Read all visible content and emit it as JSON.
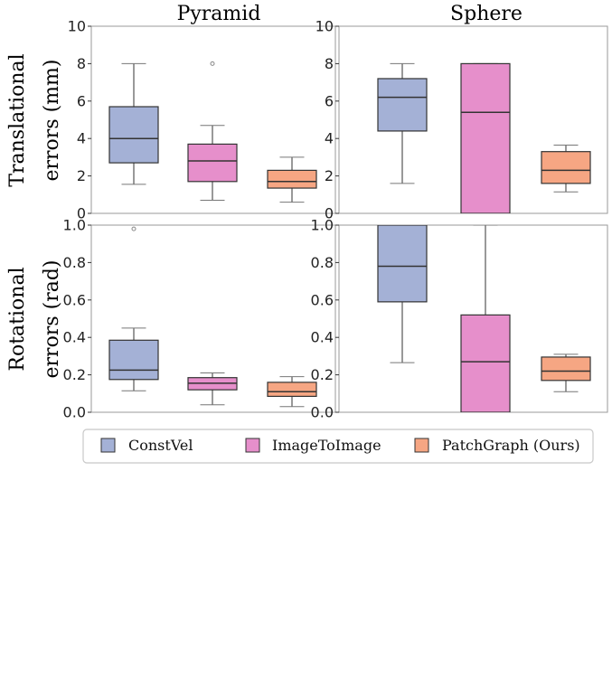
{
  "colors": {
    "ConstVel": "#a4b1d6",
    "ImageToImage": "#e68fcb",
    "PatchGraph (Ours)": "#f6a683",
    "box_stroke": "#333333",
    "frame": "#9a9a9a"
  },
  "column_titles": [
    "Pyramid",
    "Sphere"
  ],
  "row_labels": [
    [
      "Translational",
      "errors (mm)"
    ],
    [
      "Rotational",
      "errors (rad)"
    ]
  ],
  "legend": {
    "placement": "bottom-center",
    "items": [
      {
        "label": "ConstVel",
        "series": "ConstVel"
      },
      {
        "label": "ImageToImage",
        "series": "ImageToImage"
      },
      {
        "label": "PatchGraph (Ours)",
        "series": "PatchGraph (Ours)"
      }
    ]
  },
  "chart_data": [
    {
      "type": "box",
      "title": "Pyramid",
      "ylabel": "Translational errors (mm)",
      "ylim": [
        0,
        10
      ],
      "yticks": [
        "0",
        "2",
        "4",
        "6",
        "8",
        "10"
      ],
      "series": [
        {
          "name": "ConstVel",
          "whisker_low": 1.55,
          "q1": 2.7,
          "median": 4.0,
          "q3": 5.7,
          "whisker_high": 8.0,
          "outliers": []
        },
        {
          "name": "ImageToImage",
          "whisker_low": 0.7,
          "q1": 1.7,
          "median": 2.8,
          "q3": 3.7,
          "whisker_high": 4.7,
          "outliers": [
            8.0
          ]
        },
        {
          "name": "PatchGraph (Ours)",
          "whisker_low": 0.6,
          "q1": 1.35,
          "median": 1.7,
          "q3": 2.3,
          "whisker_high": 3.0,
          "outliers": []
        }
      ]
    },
    {
      "type": "box",
      "title": "Sphere",
      "ylabel": "Translational errors (mm)",
      "ylim": [
        0,
        10
      ],
      "yticks": [
        "0",
        "2",
        "4",
        "6",
        "8",
        "10"
      ],
      "series": [
        {
          "name": "ConstVel",
          "whisker_low": 1.6,
          "q1": 4.4,
          "median": 6.2,
          "q3": 7.2,
          "whisker_high": 8.0,
          "outliers": []
        },
        {
          "name": "ImageToImage",
          "whisker_low": 0.0,
          "q1": 0.0,
          "median": 5.4,
          "q3": 8.0,
          "whisker_high": 8.0,
          "outliers": []
        },
        {
          "name": "PatchGraph (Ours)",
          "whisker_low": 1.15,
          "q1": 1.6,
          "median": 2.3,
          "q3": 3.3,
          "whisker_high": 3.65,
          "outliers": []
        }
      ]
    },
    {
      "type": "box",
      "title": "Pyramid",
      "ylabel": "Rotational errors (rad)",
      "ylim": [
        0,
        1
      ],
      "yticks": [
        "0.0",
        "0.2",
        "0.4",
        "0.6",
        "0.8",
        "1.0"
      ],
      "series": [
        {
          "name": "ConstVel",
          "whisker_low": 0.115,
          "q1": 0.175,
          "median": 0.225,
          "q3": 0.385,
          "whisker_high": 0.45,
          "outliers": [
            0.98
          ]
        },
        {
          "name": "ImageToImage",
          "whisker_low": 0.04,
          "q1": 0.12,
          "median": 0.155,
          "q3": 0.185,
          "whisker_high": 0.21,
          "outliers": []
        },
        {
          "name": "PatchGraph (Ours)",
          "whisker_low": 0.03,
          "q1": 0.085,
          "median": 0.11,
          "q3": 0.16,
          "whisker_high": 0.19,
          "outliers": []
        }
      ]
    },
    {
      "type": "box",
      "title": "Sphere",
      "ylabel": "Rotational errors (rad)",
      "ylim": [
        0,
        1
      ],
      "yticks": [
        "0.0",
        "0.2",
        "0.4",
        "0.6",
        "0.8",
        "1.0"
      ],
      "series": [
        {
          "name": "ConstVel",
          "whisker_low": 0.265,
          "q1": 0.59,
          "median": 0.78,
          "q3": 1.0,
          "whisker_high": 1.0,
          "outliers": []
        },
        {
          "name": "ImageToImage",
          "whisker_low": 0.0,
          "q1": 0.0,
          "median": 0.27,
          "q3": 0.52,
          "whisker_high": 1.0,
          "outliers": []
        },
        {
          "name": "PatchGraph (Ours)",
          "whisker_low": 0.11,
          "q1": 0.17,
          "median": 0.22,
          "q3": 0.295,
          "whisker_high": 0.31,
          "outliers": []
        }
      ]
    }
  ]
}
